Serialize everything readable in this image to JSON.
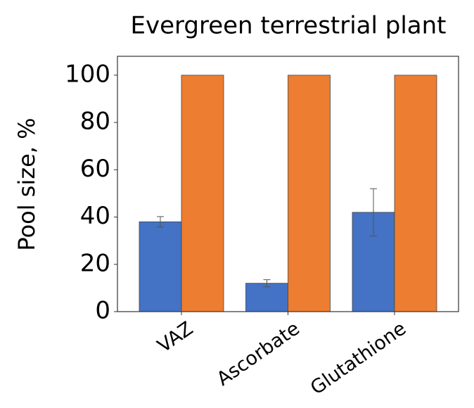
{
  "chart_data": {
    "type": "bar",
    "title": "Evergreen terrestrial plant",
    "ylabel": "Pool size, %",
    "categories": [
      "VAZ",
      "Ascorbate",
      "Glutathione"
    ],
    "series": [
      {
        "color": "#4472c4",
        "values": [
          38,
          12,
          42
        ],
        "errors": [
          2.2,
          1.5,
          10
        ]
      },
      {
        "color": "#ed7d31",
        "values": [
          100,
          100,
          100
        ]
      }
    ],
    "ylim": [
      0,
      108
    ],
    "yticks": [
      0,
      20,
      40,
      60,
      80,
      100
    ],
    "grid": false
  }
}
